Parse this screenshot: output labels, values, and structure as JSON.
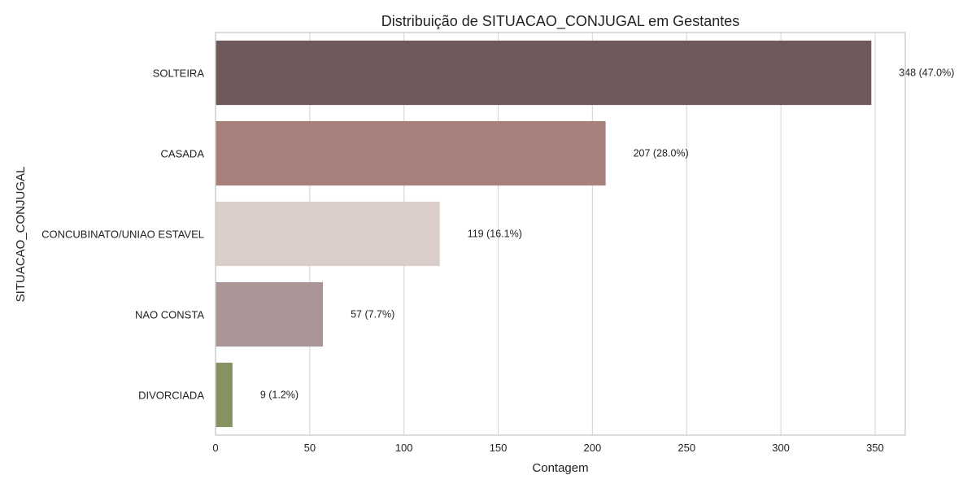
{
  "chart_data": {
    "type": "bar",
    "orientation": "horizontal",
    "title": "Distribuição de SITUACAO_CONJUGAL em Gestantes",
    "xlabel": "Contagem",
    "ylabel": "SITUACAO_CONJUGAL",
    "categories": [
      "SOLTEIRA",
      "CASADA",
      "CONCUBINATO/UNIAO ESTAVEL",
      "NAO CONSTA",
      "DIVORCIADA"
    ],
    "values": [
      348,
      207,
      119,
      57,
      9
    ],
    "data_labels": [
      "348 (47.0%)",
      "207 (28.0%)",
      "119 (16.1%)",
      "57 (7.7%)",
      "9 (1.2%)"
    ],
    "colors": [
      "#6e5a5a",
      "#a8807b",
      "#dbcdca",
      "#a99596",
      "#879262"
    ],
    "xlim": [
      0,
      366
    ],
    "xticks": [
      0,
      50,
      100,
      150,
      200,
      250,
      300,
      350
    ],
    "grid": true
  }
}
